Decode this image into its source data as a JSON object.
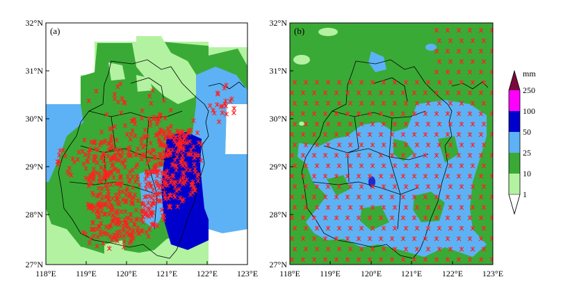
{
  "panels": [
    {
      "label": "(a)",
      "y_ticks": [
        "32°N",
        "31°N",
        "30°N",
        "29°N",
        "28°N",
        "27°N"
      ],
      "x_ticks": [
        "118°E",
        "119°E",
        "120°E",
        "121°E",
        "122°E",
        "123°E"
      ]
    },
    {
      "label": "(b)",
      "y_ticks": [
        "32°N",
        "31°N",
        "30°N",
        "29°N",
        "28°N",
        "27°N"
      ],
      "x_ticks": [
        "118°E",
        "119°E",
        "120°E",
        "121°E",
        "122°E",
        "123°E"
      ]
    }
  ],
  "colorbar": {
    "unit": "mm",
    "labels": [
      "250",
      "100",
      "50",
      "25",
      "10",
      "1"
    ],
    "colors": [
      "#7a0a3c",
      "#ff00ff",
      "#0000cd",
      "#5db2f5",
      "#3aaa36",
      "#b3f2a1",
      "#ffffff"
    ]
  },
  "colors": {
    "light_green": "#b3f2a1",
    "green": "#3aaa36",
    "light_blue": "#5db2f5",
    "blue": "#0000cd",
    "dark_blue": "#1c2ad0",
    "stations": "#ff2020"
  }
}
